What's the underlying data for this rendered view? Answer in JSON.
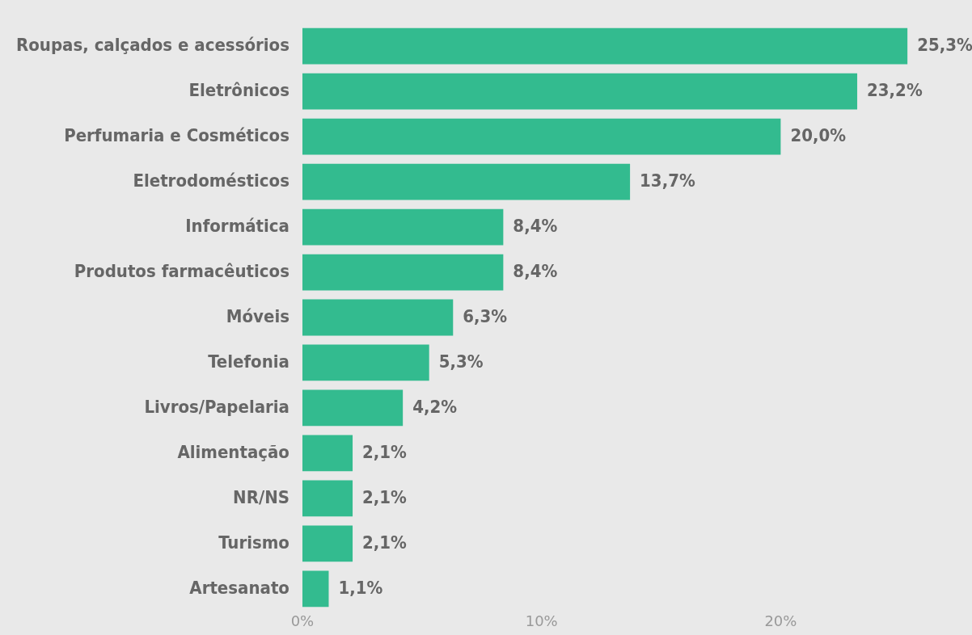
{
  "chart_data": {
    "type": "bar",
    "orientation": "horizontal",
    "categories": [
      "Roupas, calçados e acessórios",
      "Eletrônicos",
      "Perfumaria e Cosméticos",
      "Eletrodomésticos",
      "Informática",
      "Produtos farmacêuticos",
      "Móveis",
      "Telefonia",
      "Livros/Papelaria",
      "Alimentação",
      "NR/NS",
      "Turismo",
      "Artesanato"
    ],
    "values": [
      25.3,
      23.2,
      20.0,
      13.7,
      8.4,
      8.4,
      6.3,
      5.3,
      4.2,
      2.1,
      2.1,
      2.1,
      1.1
    ],
    "value_labels": [
      "25,3%",
      "23,2%",
      "20,0%",
      "13,7%",
      "8,4%",
      "8,4%",
      "6,3%",
      "5,3%",
      "4,2%",
      "2,1%",
      "2,1%",
      "2,1%",
      "1,1%"
    ],
    "color": "#33bb8f",
    "xlim": [
      0,
      28
    ],
    "xticks": [
      {
        "value": 0,
        "label": "0%"
      },
      {
        "value": 10,
        "label": "10%"
      },
      {
        "value": 20,
        "label": "20%"
      }
    ],
    "grid": false,
    "legend": false
  }
}
